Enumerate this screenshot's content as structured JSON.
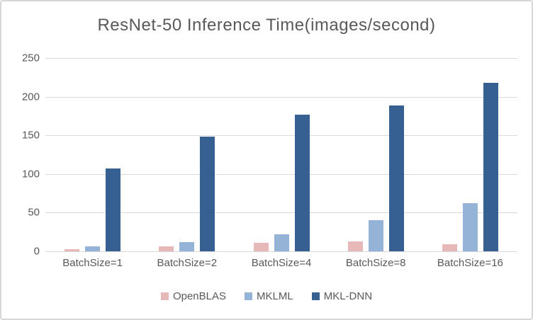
{
  "chart_data": {
    "type": "bar",
    "title": "ResNet-50 Inference Time(images/second)",
    "categories": [
      "BatchSize=1",
      "BatchSize=2",
      "BatchSize=4",
      "BatchSize=8",
      "BatchSize=16"
    ],
    "series": [
      {
        "name": "OpenBLAS",
        "color": "#e6b9b8",
        "values": [
          3,
          6,
          11,
          13,
          9
        ]
      },
      {
        "name": "MKLML",
        "color": "#95b3d7",
        "values": [
          6,
          12,
          22,
          40,
          62
        ]
      },
      {
        "name": "MKL-DNN",
        "color": "#376092",
        "values": [
          107,
          148,
          177,
          189,
          218
        ]
      }
    ],
    "xlabel": "",
    "ylabel": "",
    "ylim": [
      0,
      250
    ],
    "yticks": [
      0,
      50,
      100,
      150,
      200,
      250
    ],
    "grid": true,
    "legend_position": "bottom",
    "text_color": "#595959",
    "gridline_color": "#d9d9d9",
    "background_color": "#ffffff"
  }
}
